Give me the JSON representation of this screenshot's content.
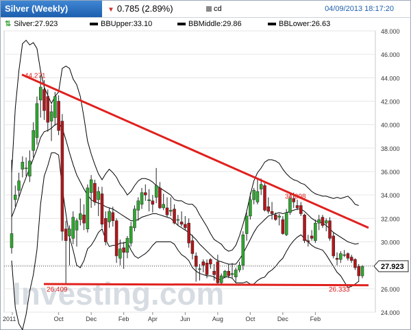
{
  "header": {
    "title": "Silver (Weekly)",
    "change": "0.785 (2.89%)",
    "ticker": "cd",
    "datetime": "04/09/2013 18:17:20"
  },
  "legend": {
    "last": "Silver:27.923",
    "bb_upper": "BBUpper:33.10",
    "bb_middle": "BBMiddle:29.86",
    "bb_lower": "BBLower:26.63"
  },
  "watermark": "Investing.com",
  "colors": {
    "up": "#2fa82f",
    "down": "#b3161a",
    "trend": "#e0201d",
    "band": "#000000",
    "brand": "#1d5fae"
  },
  "chart_data": {
    "type": "candlestick",
    "title": "Silver (Weekly)",
    "y_ticks": [
      "48.000",
      "46.000",
      "44.000",
      "42.000",
      "40.000",
      "38.000",
      "36.000",
      "34.000",
      "32.000",
      "30.000",
      "28.000",
      "26.000",
      "24.000"
    ],
    "ylim": [
      24,
      48
    ],
    "x_ticks": [
      "2011",
      "Oct",
      "Dec",
      "Feb",
      "Apr",
      "Jun",
      "Aug",
      "Oct",
      "Dec",
      "Feb"
    ],
    "last_price": "27.923",
    "annotations": [
      "44.271",
      "26.409",
      "34.098",
      "26.333"
    ],
    "trendlines": [
      {
        "from": [
          "2011-08-22",
          44.27
        ],
        "to": [
          "2013-04-08",
          31.2
        ]
      },
      {
        "from": [
          "2011-09-26",
          26.4
        ],
        "to": [
          "2013-04-08",
          26.3
        ]
      }
    ],
    "bollinger": {
      "upper_last": 33.1,
      "middle_last": 29.86,
      "lower_last": 26.63
    },
    "candles": [
      [
        29.5,
        37.0,
        29.0,
        30.7
      ],
      [
        33.6,
        34.8,
        33.0,
        34.0
      ],
      [
        34.4,
        35.9,
        33.8,
        35.2
      ],
      [
        36.2,
        37.3,
        35.5,
        36.8
      ],
      [
        36.3,
        37.2,
        35.6,
        36.3
      ],
      [
        35.6,
        37.8,
        35.1,
        36.9
      ],
      [
        37.8,
        40.2,
        37.2,
        39.5
      ],
      [
        38.9,
        42.4,
        38.3,
        41.8
      ],
      [
        42.1,
        44.2,
        40.6,
        43.2
      ],
      [
        43.0,
        43.8,
        40.4,
        41.2
      ],
      [
        42.4,
        43.0,
        39.4,
        40.2
      ],
      [
        40.3,
        41.7,
        38.6,
        41.1
      ],
      [
        40.6,
        42.8,
        39.9,
        42.4
      ],
      [
        42.0,
        42.5,
        39.1,
        39.5
      ],
      [
        40.3,
        40.9,
        30.1,
        30.9
      ],
      [
        31.1,
        31.8,
        26.4,
        30.1
      ],
      [
        30.5,
        31.4,
        28.0,
        31.1
      ],
      [
        30.3,
        32.6,
        29.8,
        32.1
      ],
      [
        31.0,
        32.0,
        29.6,
        31.8
      ],
      [
        31.9,
        33.7,
        31.4,
        32.4
      ],
      [
        32.3,
        33.2,
        31.0,
        31.6
      ],
      [
        31.1,
        34.9,
        30.8,
        34.6
      ],
      [
        34.2,
        35.7,
        32.9,
        35.3
      ],
      [
        35.0,
        35.3,
        33.1,
        33.4
      ],
      [
        33.6,
        34.7,
        32.2,
        34.3
      ],
      [
        34.1,
        34.7,
        31.2,
        31.5
      ],
      [
        32.0,
        32.6,
        29.7,
        30.0
      ],
      [
        31.7,
        32.9,
        31.2,
        32.6
      ],
      [
        32.5,
        33.0,
        31.3,
        31.8
      ],
      [
        31.8,
        32.0,
        28.2,
        28.8
      ],
      [
        28.6,
        30.2,
        28.0,
        29.4
      ],
      [
        29.5,
        30.0,
        27.7,
        29.1
      ],
      [
        29.1,
        30.5,
        28.6,
        30.3
      ],
      [
        29.9,
        31.7,
        29.6,
        31.3
      ],
      [
        31.2,
        33.1,
        30.9,
        32.8
      ],
      [
        32.7,
        33.8,
        31.8,
        33.5
      ],
      [
        33.2,
        34.6,
        32.8,
        34.2
      ],
      [
        34.2,
        34.9,
        33.5,
        34.0
      ],
      [
        33.5,
        34.5,
        32.6,
        33.6
      ],
      [
        33.5,
        34.0,
        32.5,
        33.2
      ],
      [
        33.8,
        36.3,
        33.3,
        34.8
      ],
      [
        34.6,
        35.1,
        32.8,
        32.9
      ],
      [
        32.9,
        34.1,
        32.7,
        33.2
      ],
      [
        32.9,
        33.8,
        32.1,
        32.3
      ],
      [
        32.6,
        33.8,
        32.2,
        32.7
      ],
      [
        32.8,
        33.2,
        31.5,
        31.6
      ],
      [
        31.9,
        32.3,
        31.4,
        31.9
      ],
      [
        31.7,
        32.6,
        31.3,
        31.5
      ],
      [
        31.5,
        32.2,
        31.0,
        31.2
      ],
      [
        31.6,
        32.0,
        29.5,
        29.9
      ],
      [
        30.1,
        30.6,
        28.5,
        29.0
      ],
      [
        28.8,
        29.1,
        26.6,
        27.9
      ],
      [
        27.7,
        28.1,
        26.7,
        27.7
      ],
      [
        28.3,
        28.5,
        27.4,
        28.0
      ],
      [
        28.2,
        28.5,
        26.9,
        27.2
      ],
      [
        28.5,
        28.6,
        27.7,
        28.1
      ],
      [
        27.5,
        28.1,
        26.7,
        27.2
      ],
      [
        28.3,
        28.9,
        26.3,
        26.5
      ],
      [
        26.5,
        27.3,
        26.3,
        27.1
      ],
      [
        27.0,
        27.6,
        26.9,
        27.5
      ],
      [
        27.5,
        28.1,
        26.9,
        27.1
      ],
      [
        27.2,
        28.2,
        26.9,
        27.3
      ],
      [
        27.0,
        27.8,
        26.5,
        27.6
      ],
      [
        27.6,
        28.3,
        27.4,
        28.0
      ],
      [
        28.0,
        30.9,
        27.6,
        30.6
      ],
      [
        30.7,
        32.7,
        30.1,
        32.2
      ],
      [
        32.2,
        34.2,
        31.9,
        33.6
      ],
      [
        33.6,
        34.6,
        33.2,
        34.4
      ],
      [
        33.4,
        35.3,
        33.2,
        34.3
      ],
      [
        34.5,
        35.4,
        34.0,
        34.9
      ],
      [
        34.8,
        35.0,
        32.6,
        32.7
      ],
      [
        33.0,
        33.8,
        32.4,
        32.6
      ],
      [
        32.6,
        33.4,
        31.9,
        32.4
      ],
      [
        32.3,
        32.5,
        31.8,
        31.9
      ],
      [
        32.1,
        32.4,
        31.4,
        32.2
      ],
      [
        31.9,
        32.2,
        30.6,
        30.7
      ],
      [
        30.6,
        32.8,
        30.5,
        32.5
      ],
      [
        32.5,
        34.1,
        32.3,
        33.7
      ],
      [
        33.7,
        34.2,
        32.9,
        33.4
      ],
      [
        33.1,
        33.6,
        32.7,
        32.9
      ],
      [
        33.1,
        33.4,
        32.2,
        32.4
      ],
      [
        32.3,
        32.4,
        29.9,
        30.1
      ],
      [
        30.1,
        30.6,
        29.6,
        30.0
      ],
      [
        30.5,
        31.0,
        30.1,
        30.3
      ],
      [
        30.1,
        31.9,
        29.9,
        31.6
      ],
      [
        31.6,
        32.3,
        31.0,
        31.9
      ],
      [
        32.1,
        32.3,
        31.2,
        31.4
      ],
      [
        31.6,
        32.0,
        30.9,
        31.8
      ],
      [
        31.8,
        32.1,
        30.1,
        30.3
      ],
      [
        30.5,
        30.8,
        28.6,
        28.8
      ],
      [
        28.6,
        29.1,
        28.0,
        28.5
      ],
      [
        28.5,
        29.2,
        28.2,
        29.0
      ],
      [
        28.9,
        29.3,
        28.7,
        28.9
      ],
      [
        29.0,
        29.1,
        28.4,
        28.6
      ],
      [
        28.7,
        28.9,
        28.2,
        28.4
      ],
      [
        28.5,
        28.6,
        27.6,
        27.8
      ],
      [
        27.9,
        28.1,
        26.6,
        27.1
      ],
      [
        27.1,
        28.0,
        26.9,
        27.9
      ]
    ],
    "bb_upper_series": [
      35.8,
      41.4,
      44.6,
      46.9,
      47.2,
      46.8,
      47.0,
      46.5,
      44.6,
      43.2,
      42.5,
      41.8,
      42.4,
      42.8,
      44.8,
      45.0,
      44.8,
      43.9,
      43.4,
      42.4,
      40.6,
      38.6,
      37.5,
      36.6,
      35.8,
      35.3,
      35.8,
      36.2,
      35.9,
      35.5,
      34.9,
      34.5,
      34.0,
      34.3,
      34.8,
      35.2,
      35.4,
      35.4,
      35.3,
      35.1,
      34.8,
      34.6,
      34.4,
      34.2,
      34.0,
      33.6,
      33.5,
      33.5,
      33.3,
      33.2,
      33.2,
      32.9,
      32.3,
      31.8,
      31.3,
      30.7,
      30.2,
      30.0,
      29.8,
      29.4,
      29.2,
      29.3,
      29.7,
      30.5,
      31.5,
      32.6,
      34.0,
      35.2,
      35.9,
      36.3,
      36.8,
      37.0,
      37.0,
      36.9,
      36.7,
      36.2,
      35.8,
      35.5,
      35.3,
      35.2,
      35.0,
      34.9,
      34.6,
      34.3,
      34.1,
      34.0,
      33.9,
      33.9,
      33.8,
      33.7,
      33.8,
      33.7,
      33.8,
      33.9,
      33.6,
      33.2,
      33.1
    ],
    "bb_middle_series": [
      32.1,
      32.9,
      33.8,
      34.7,
      35.5,
      36.3,
      37.1,
      37.9,
      38.9,
      39.4,
      39.5,
      39.7,
      40.0,
      40.1,
      39.7,
      38.7,
      37.6,
      36.6,
      35.7,
      35.1,
      34.5,
      34.0,
      33.6,
      33.4,
      33.3,
      33.2,
      33.0,
      32.9,
      32.8,
      32.6,
      32.4,
      32.2,
      32.0,
      31.8,
      31.8,
      31.9,
      32.1,
      32.2,
      32.3,
      32.4,
      32.4,
      32.3,
      32.2,
      32.1,
      32.0,
      31.7,
      31.4,
      31.2,
      31.0,
      30.8,
      30.5,
      30.2,
      29.8,
      29.5,
      29.2,
      28.9,
      28.6,
      28.4,
      28.3,
      28.2,
      28.1,
      28.1,
      28.1,
      28.5,
      29.0,
      29.6,
      30.2,
      30.8,
      31.3,
      31.6,
      31.9,
      32.2,
      32.3,
      32.4,
      32.5,
      32.4,
      32.5,
      32.6,
      32.7,
      32.8,
      32.8,
      32.6,
      32.3,
      32.0,
      31.8,
      31.7,
      31.6,
      31.4,
      31.1,
      30.8,
      30.6,
      30.4,
      30.2,
      30.0,
      29.9,
      29.8,
      29.86
    ],
    "bb_lower_series": [
      28.4,
      24.4,
      23.0,
      22.5,
      23.8,
      25.8,
      27.2,
      29.3,
      33.2,
      35.6,
      36.5,
      37.6,
      37.6,
      37.4,
      34.6,
      32.4,
      30.4,
      29.3,
      28.0,
      27.8,
      28.4,
      29.4,
      29.7,
      30.2,
      30.8,
      31.1,
      30.2,
      29.6,
      29.7,
      29.7,
      29.9,
      29.9,
      30.0,
      29.3,
      28.8,
      28.6,
      28.8,
      29.0,
      29.3,
      29.7,
      30.0,
      30.0,
      30.0,
      30.0,
      30.0,
      29.8,
      29.3,
      28.9,
      28.7,
      28.4,
      27.8,
      27.5,
      27.3,
      27.2,
      27.1,
      27.1,
      27.0,
      26.8,
      26.8,
      27.0,
      27.0,
      26.9,
      26.5,
      26.5,
      26.5,
      26.6,
      26.4,
      26.4,
      26.7,
      26.9,
      27.0,
      27.4,
      27.6,
      27.9,
      28.3,
      28.6,
      29.2,
      29.7,
      30.1,
      30.4,
      30.6,
      30.3,
      30.0,
      29.7,
      29.5,
      29.4,
      29.3,
      28.9,
      28.4,
      27.9,
      27.4,
      27.1,
      26.6,
      26.1,
      26.2,
      26.4,
      26.63
    ]
  }
}
